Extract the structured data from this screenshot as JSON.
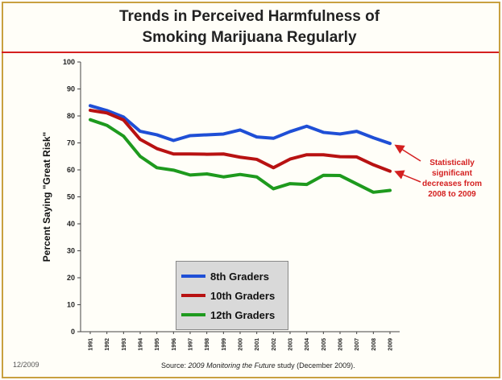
{
  "title": {
    "line1": "Trends in Perceived Harmfulness of",
    "line2": "Smoking Marijuana Regularly"
  },
  "chart_data": {
    "type": "line",
    "title": "Trends in Perceived Harmfulness of Smoking Marijuana Regularly",
    "xlabel": "",
    "ylabel": "Percent Saying \"Great Risk\"",
    "ylim": [
      0,
      100
    ],
    "yticks": [
      "0",
      "10",
      "20",
      "30",
      "40",
      "50",
      "60",
      "70",
      "80",
      "90",
      "100"
    ],
    "categories": [
      "1991",
      "1992",
      "1993",
      "1994",
      "1995",
      "1996",
      "1997",
      "1998",
      "1999",
      "2000",
      "2001",
      "2002",
      "2003",
      "2004",
      "2005",
      "2006",
      "2007",
      "2008",
      "2009"
    ],
    "series": [
      {
        "name": "8th Graders",
        "color": "#1f4fd6",
        "values": [
          83.8,
          82.0,
          79.6,
          74.3,
          73.0,
          70.9,
          72.7,
          73.0,
          73.3,
          74.8,
          72.2,
          71.7,
          74.2,
          76.2,
          73.9,
          73.3,
          74.3,
          71.9,
          69.8
        ]
      },
      {
        "name": "10th Graders",
        "color": "#b81212",
        "values": [
          82.1,
          81.1,
          78.5,
          71.3,
          67.9,
          65.9,
          65.9,
          65.8,
          65.9,
          64.7,
          63.9,
          60.8,
          64.0,
          65.6,
          65.6,
          64.9,
          64.8,
          61.9,
          59.5
        ]
      },
      {
        "name": "12th Graders",
        "color": "#1e9a1e",
        "values": [
          78.6,
          76.5,
          72.5,
          65.0,
          60.8,
          59.9,
          58.1,
          58.5,
          57.4,
          58.3,
          57.4,
          53.0,
          54.9,
          54.6,
          58.0,
          57.9,
          54.8,
          51.7,
          52.4
        ]
      }
    ],
    "legend_position": "bottom-center",
    "annotation": "Statistically significant decreases from 2008 to 2009"
  },
  "annotation_lines": [
    "Statistically",
    "significant",
    "decreases from",
    "2008 to 2009"
  ],
  "footer": {
    "date": "12/2009",
    "source_prefix": "Source:",
    "source_title": "2009 Monitoring the Future",
    "source_suffix": "study (December 2009)."
  }
}
